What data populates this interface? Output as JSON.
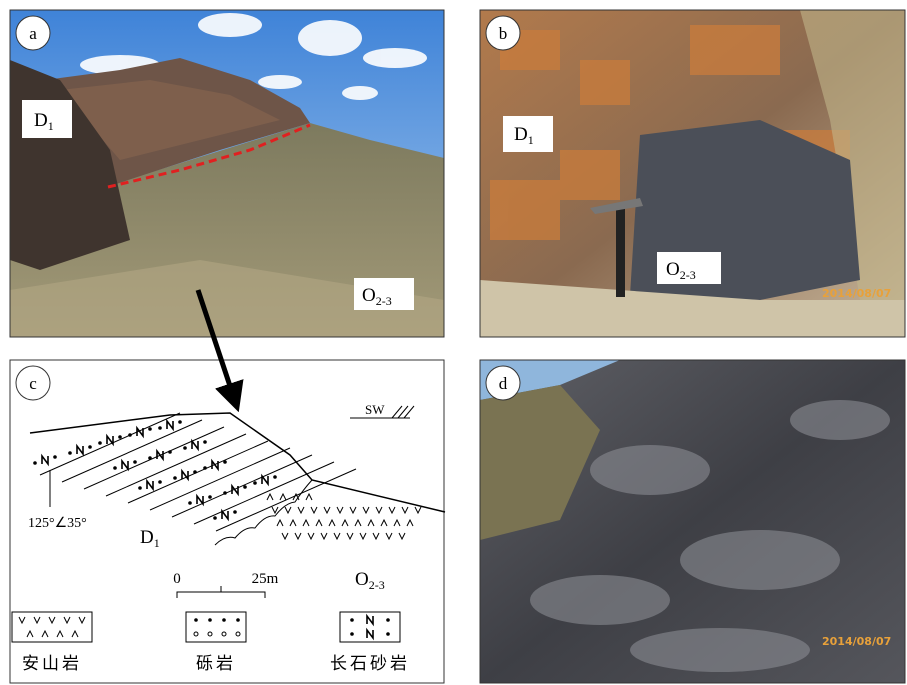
{
  "panels": [
    {
      "label": "a",
      "unit_labels": [
        {
          "main": "D",
          "sub": "1"
        },
        {
          "main": "O",
          "sub": "2-3"
        }
      ]
    },
    {
      "label": "b",
      "unit_labels": [
        {
          "main": "D",
          "sub": "1"
        },
        {
          "main": "O",
          "sub": "2-3"
        }
      ],
      "date": "2014/08/07"
    },
    {
      "label": "c",
      "orientation": "SW",
      "attitude": "125°∠35°",
      "unit_labels": [
        {
          "main": "D",
          "sub": "1"
        },
        {
          "main": "O",
          "sub": "2-3"
        }
      ],
      "scale": {
        "start": "0",
        "end": "25m"
      },
      "legend": [
        "安山岩",
        "砾岩",
        "长石砂岩"
      ]
    },
    {
      "label": "d",
      "date": "2014/08/07"
    }
  ]
}
